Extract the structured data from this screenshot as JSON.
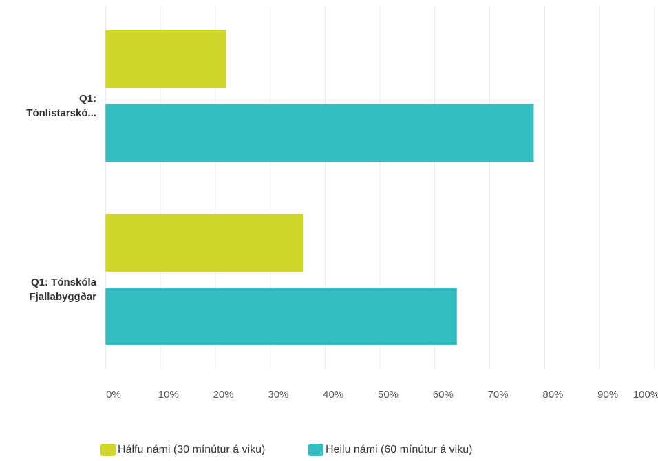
{
  "chart_data": {
    "type": "bar",
    "orientation": "horizontal",
    "categories": [
      "Q1: Tónlistarskó...",
      "Q1: Tónskóla Fjallabyggðar"
    ],
    "category_lines": [
      [
        "Q1:",
        "Tónlistarskó..."
      ],
      [
        "Q1: Tónskóla",
        "Fjallabyggðar"
      ]
    ],
    "series": [
      {
        "name": "Hálfu námi (30 mínútur á viku)",
        "color": "#d0d72a",
        "values": [
          22,
          36
        ]
      },
      {
        "name": "Heilu námi (60 mínútur á viku)",
        "color": "#35bec1",
        "values": [
          78,
          64
        ]
      }
    ],
    "xlim": [
      0,
      100
    ],
    "x_ticks": [
      "0%",
      "10%",
      "20%",
      "30%",
      "40%",
      "50%",
      "60%",
      "70%",
      "80%",
      "90%",
      "100%"
    ],
    "grid": true,
    "legend_position": "bottom"
  }
}
